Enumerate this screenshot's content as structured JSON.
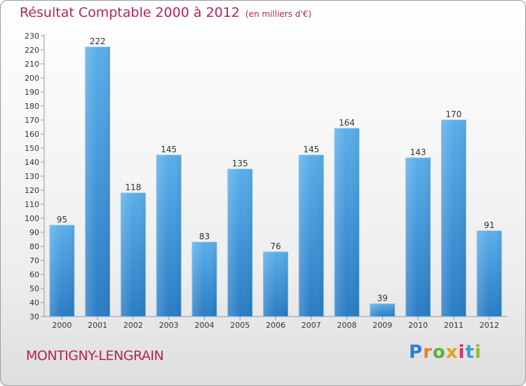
{
  "header": {
    "title": "Résultat Comptable 2000 à 2012",
    "subtitle": "(en milliers d'€)"
  },
  "footer": {
    "commune": "MONTIGNY-LENGRAIN",
    "logo_letters": [
      "P",
      "r",
      "o",
      "x",
      "i",
      "t",
      "i"
    ]
  },
  "chart_data": {
    "type": "bar",
    "title": "Résultat Comptable 2000 à 2012",
    "subtitle": "(en milliers d'€)",
    "xlabel": "",
    "ylabel": "",
    "categories": [
      "2000",
      "2001",
      "2002",
      "2003",
      "2004",
      "2005",
      "2006",
      "2007",
      "2008",
      "2009",
      "2010",
      "2011",
      "2012"
    ],
    "values": [
      95,
      222,
      118,
      145,
      83,
      135,
      76,
      145,
      164,
      39,
      143,
      170,
      91
    ],
    "ylim": [
      30,
      230
    ],
    "ytick_step": 10,
    "grid": false,
    "bar_color": "#4a9ee0",
    "bar_color_dark": "#2a7cc4",
    "label_color": "#333333"
  }
}
